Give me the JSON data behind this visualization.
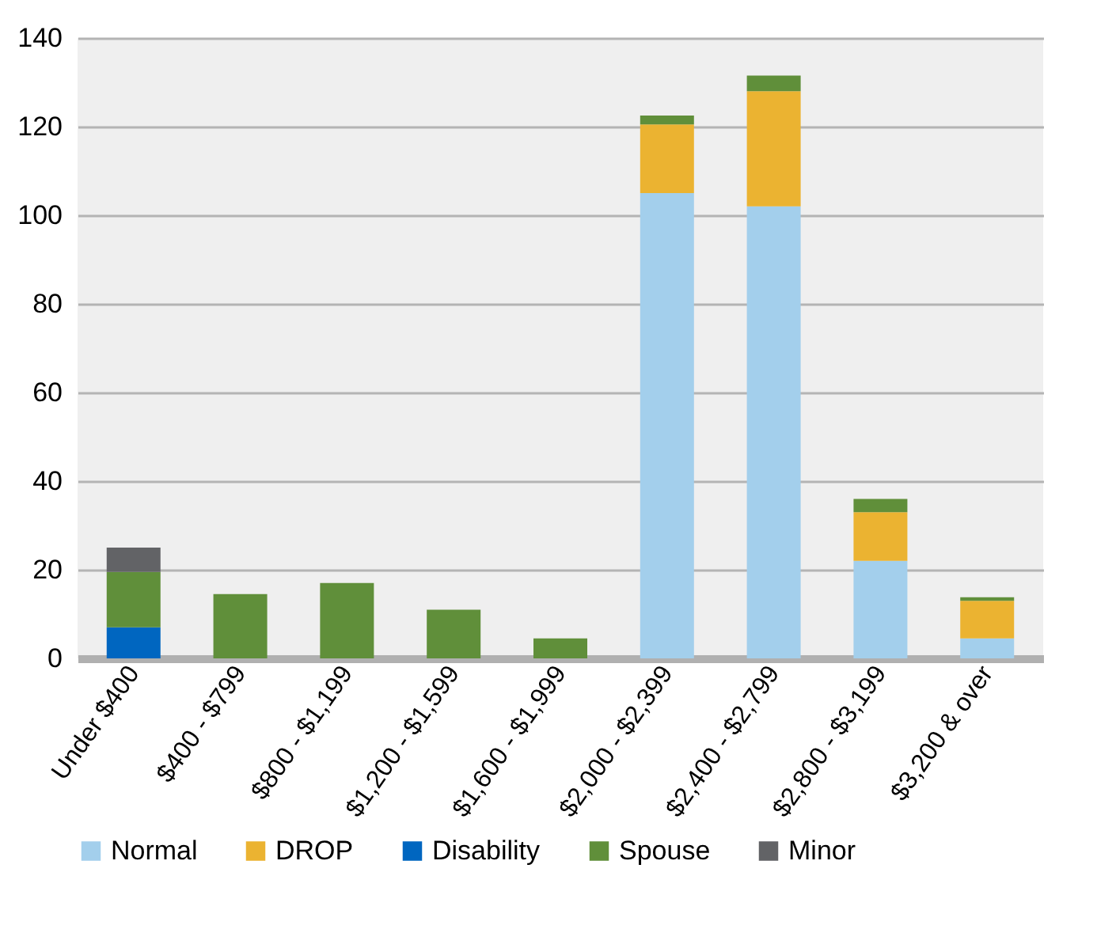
{
  "chart_data": {
    "type": "bar",
    "stacked": true,
    "categories": [
      "Under $400",
      "$400 - $799",
      "$800 - $1,199",
      "$1,200 - $1,599",
      "$1,600 - $1,999",
      "$2,000 - $2,399",
      "$2,400 - $2,799",
      "$2,800 - $3,199",
      "$3,200 & over"
    ],
    "series": [
      {
        "name": "Normal",
        "color": "#a3cfec",
        "values": [
          0,
          0,
          0,
          0,
          0,
          105,
          102,
          22,
          4.5
        ]
      },
      {
        "name": "DROP",
        "color": "#ebb331",
        "values": [
          0,
          0,
          0,
          0,
          0,
          15.5,
          26,
          11,
          8.5
        ]
      },
      {
        "name": "Disability",
        "color": "#0066c0",
        "values": [
          7,
          0,
          0,
          0,
          0,
          0,
          0,
          0,
          0
        ]
      },
      {
        "name": "Spouse",
        "color": "#608f3a",
        "values": [
          12.5,
          14.5,
          17,
          11,
          4.5,
          2,
          3.5,
          3,
          0.8
        ]
      },
      {
        "name": "Minor",
        "color": "#626366",
        "values": [
          5.5,
          0,
          0,
          0,
          0,
          0,
          0,
          0,
          0
        ]
      }
    ],
    "ylim": [
      0,
      140
    ],
    "yticks": [
      0,
      20,
      40,
      60,
      80,
      100,
      120,
      140
    ],
    "grid": "y",
    "legend": "bottom"
  }
}
